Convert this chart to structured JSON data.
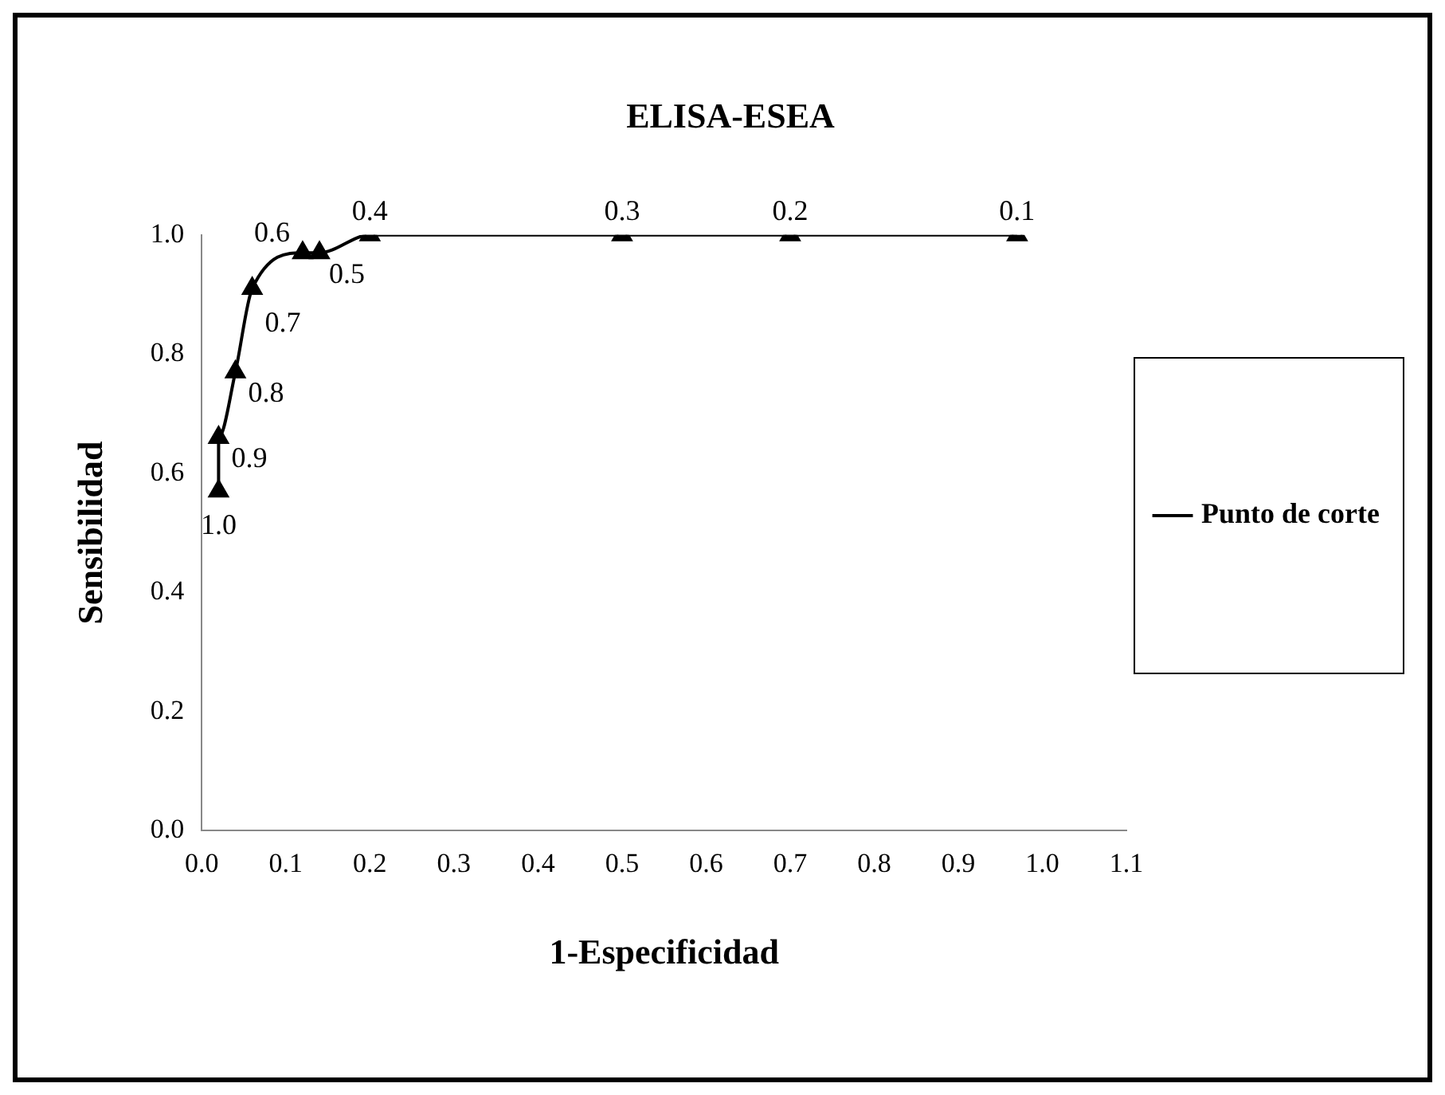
{
  "chart_data": {
    "type": "line",
    "title": "ELISA-ESEA",
    "xlabel": "1-Especificidad",
    "ylabel": "Sensibilidad",
    "x": [
      0.02,
      0.02,
      0.04,
      0.06,
      0.12,
      0.14,
      0.2,
      0.5,
      0.7,
      0.97
    ],
    "series": [
      {
        "name": "Punto de corte",
        "color": "#000000",
        "values": [
          0.57,
          0.66,
          0.77,
          0.91,
          0.97,
          0.97,
          1.0,
          1.0,
          1.0,
          1.0
        ]
      }
    ],
    "annotations": [
      {
        "text": "1.0",
        "x": 0.02,
        "y": 0.57
      },
      {
        "text": "0.9",
        "x": 0.02,
        "y": 0.66
      },
      {
        "text": "0.8",
        "x": 0.04,
        "y": 0.77
      },
      {
        "text": "0.7",
        "x": 0.06,
        "y": 0.91
      },
      {
        "text": "0.6",
        "x": 0.12,
        "y": 0.97
      },
      {
        "text": "0.5",
        "x": 0.14,
        "y": 0.97
      },
      {
        "text": "0.4",
        "x": 0.2,
        "y": 1.0
      },
      {
        "text": "0.3",
        "x": 0.5,
        "y": 1.0
      },
      {
        "text": "0.2",
        "x": 0.7,
        "y": 1.0
      },
      {
        "text": "0.1",
        "x": 0.97,
        "y": 1.0
      }
    ],
    "xlim": [
      0,
      1.1
    ],
    "xticks": [
      {
        "value": 0,
        "label": "0.0"
      },
      {
        "value": 0.1,
        "label": "0.1"
      },
      {
        "value": 0.2,
        "label": "0.2"
      },
      {
        "value": 0.3,
        "label": "0.3"
      },
      {
        "value": 0.4,
        "label": "0.4"
      },
      {
        "value": 0.5,
        "label": "0.5"
      },
      {
        "value": 0.6,
        "label": "0.6"
      },
      {
        "value": 0.7,
        "label": "0.7"
      },
      {
        "value": 0.8,
        "label": "0.8"
      },
      {
        "value": 0.9,
        "label": "0.9"
      },
      {
        "value": 1.0,
        "label": "1.0"
      },
      {
        "value": 1.1,
        "label": "1.1"
      }
    ],
    "ylim": [
      0,
      1
    ],
    "yticks": [
      {
        "value": 0,
        "label": "0.0"
      },
      {
        "value": 0.2,
        "label": "0.2"
      },
      {
        "value": 0.4,
        "label": "0.4"
      },
      {
        "value": 0.6,
        "label": "0.6"
      },
      {
        "value": 0.8,
        "label": "0.8"
      },
      {
        "value": 1.0,
        "label": "1.0"
      }
    ],
    "grid": false,
    "legend": "right",
    "marker": "triangle",
    "line_style": "solid"
  }
}
